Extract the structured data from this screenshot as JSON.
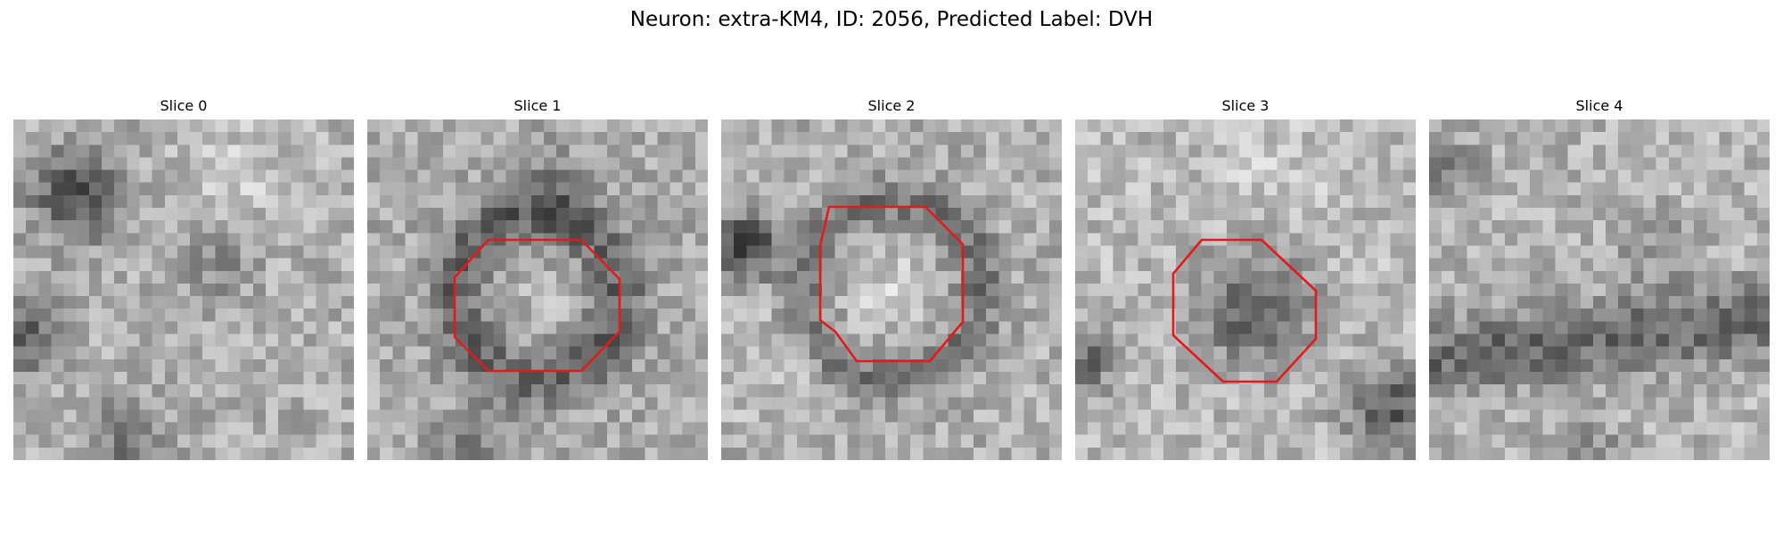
{
  "figure": {
    "title": "Neuron: extra-KM4, ID: 2056, Predicted Label: DVH",
    "colormap": "gray",
    "roi_color": "#e31a1c",
    "grid_size": 27
  },
  "slices": [
    {
      "title": "Slice 0",
      "has_roi": false,
      "texture": "dark-left-blobs"
    },
    {
      "title": "Slice 1",
      "has_roi": true,
      "texture": "dark-ring-around-center"
    },
    {
      "title": "Slice 2",
      "has_roi": true,
      "texture": "bright-center-dark-ring"
    },
    {
      "title": "Slice 3",
      "has_roi": true,
      "texture": "dark-center-blob"
    },
    {
      "title": "Slice 4",
      "has_roi": false,
      "texture": "dark-lower-band"
    }
  ]
}
